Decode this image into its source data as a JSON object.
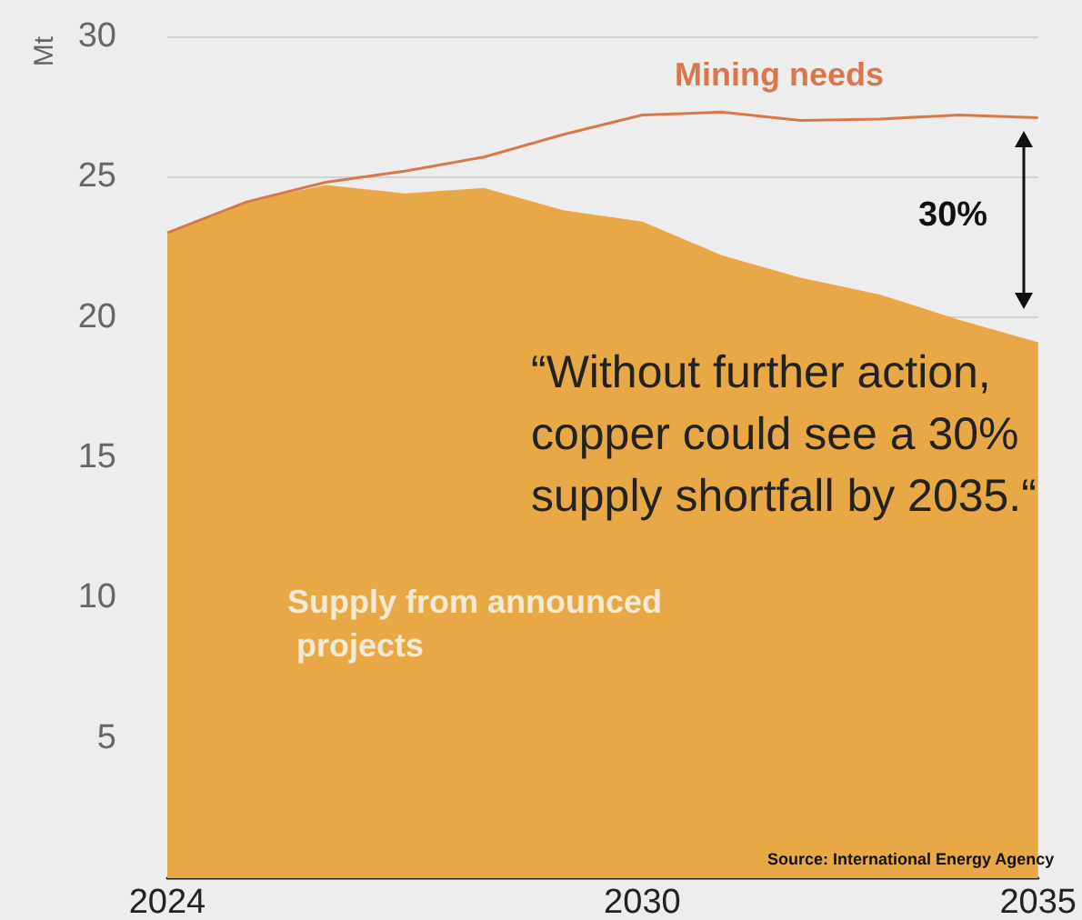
{
  "chart_data": {
    "type": "area",
    "ylabel": "Mt",
    "x": [
      2024,
      2025,
      2026,
      2027,
      2028,
      2029,
      2030,
      2031,
      2032,
      2033,
      2034,
      2035
    ],
    "series": [
      {
        "name": "Supply from announced projects",
        "color": "#e8a846",
        "values": [
          23.0,
          24.1,
          24.7,
          24.4,
          24.6,
          23.8,
          23.4,
          22.2,
          21.4,
          20.8,
          19.9,
          19.1
        ]
      },
      {
        "name": "Mining needs",
        "type": "line",
        "color": "#d9774a",
        "values": [
          23.0,
          24.1,
          24.8,
          25.2,
          25.7,
          26.5,
          27.2,
          27.3,
          27.0,
          27.05,
          27.2,
          27.1
        ]
      }
    ],
    "annotations": [
      "30%",
      "“Without further action, copper could see a 30% supply shortfall by 2035.“",
      "Source: International Energy Agency"
    ],
    "xlim": [
      2024,
      2035
    ],
    "xticks": [
      2024,
      2030,
      2035
    ],
    "ylim": [
      0,
      30
    ],
    "yticks": [
      5,
      10,
      15,
      20,
      25,
      30
    ],
    "grid": "y",
    "marker": "none",
    "line_style": "solid"
  }
}
